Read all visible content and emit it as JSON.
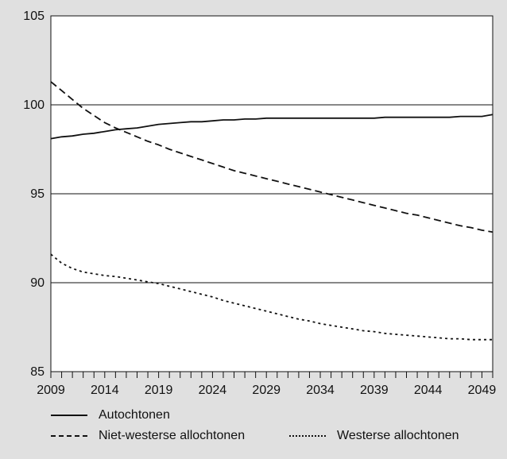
{
  "chart_data": {
    "type": "line",
    "title": "",
    "xlabel": "",
    "ylabel": "",
    "xlim": [
      2009,
      2050
    ],
    "ylim": [
      85,
      105
    ],
    "yticks": [
      85,
      90,
      95,
      100,
      105
    ],
    "xtick_labels": [
      2009,
      2014,
      2019,
      2024,
      2029,
      2034,
      2039,
      2044,
      2049
    ],
    "grid": "horizontal",
    "legend_position": "bottom",
    "series": [
      {
        "name": "Autochtonen",
        "style": "solid",
        "x": [
          2009,
          2010,
          2011,
          2012,
          2013,
          2014,
          2015,
          2016,
          2017,
          2018,
          2019,
          2020,
          2021,
          2022,
          2023,
          2024,
          2025,
          2026,
          2027,
          2028,
          2029,
          2030,
          2031,
          2032,
          2033,
          2034,
          2035,
          2036,
          2037,
          2038,
          2039,
          2040,
          2041,
          2042,
          2043,
          2044,
          2045,
          2046,
          2047,
          2048,
          2049,
          2050
        ],
        "values": [
          98.1,
          98.2,
          98.25,
          98.35,
          98.4,
          98.5,
          98.6,
          98.65,
          98.7,
          98.8,
          98.9,
          98.95,
          99.0,
          99.05,
          99.05,
          99.1,
          99.15,
          99.15,
          99.2,
          99.2,
          99.25,
          99.25,
          99.25,
          99.25,
          99.25,
          99.25,
          99.25,
          99.25,
          99.25,
          99.25,
          99.25,
          99.3,
          99.3,
          99.3,
          99.3,
          99.3,
          99.3,
          99.3,
          99.35,
          99.35,
          99.35,
          99.45
        ]
      },
      {
        "name": "Niet-westerse allochtonen",
        "style": "dashed",
        "x": [
          2009,
          2010,
          2011,
          2012,
          2013,
          2014,
          2015,
          2016,
          2017,
          2018,
          2019,
          2020,
          2021,
          2022,
          2023,
          2024,
          2025,
          2026,
          2027,
          2028,
          2029,
          2030,
          2031,
          2032,
          2033,
          2034,
          2035,
          2036,
          2037,
          2038,
          2039,
          2040,
          2041,
          2042,
          2043,
          2044,
          2045,
          2046,
          2047,
          2048,
          2049,
          2050
        ],
        "values": [
          101.3,
          100.8,
          100.3,
          99.8,
          99.4,
          99.0,
          98.7,
          98.45,
          98.2,
          97.95,
          97.75,
          97.5,
          97.3,
          97.1,
          96.9,
          96.7,
          96.5,
          96.3,
          96.15,
          96.0,
          95.85,
          95.7,
          95.55,
          95.4,
          95.25,
          95.1,
          94.95,
          94.8,
          94.65,
          94.5,
          94.35,
          94.2,
          94.05,
          93.9,
          93.8,
          93.65,
          93.5,
          93.35,
          93.2,
          93.1,
          92.95,
          92.85
        ]
      },
      {
        "name": "Westerse allochtonen",
        "style": "dotted",
        "x": [
          2009,
          2010,
          2011,
          2012,
          2013,
          2014,
          2015,
          2016,
          2017,
          2018,
          2019,
          2020,
          2021,
          2022,
          2023,
          2024,
          2025,
          2026,
          2027,
          2028,
          2029,
          2030,
          2031,
          2032,
          2033,
          2034,
          2035,
          2036,
          2037,
          2038,
          2039,
          2040,
          2041,
          2042,
          2043,
          2044,
          2045,
          2046,
          2047,
          2048,
          2049,
          2050
        ],
        "values": [
          91.6,
          91.1,
          90.8,
          90.6,
          90.5,
          90.4,
          90.35,
          90.25,
          90.15,
          90.05,
          89.95,
          89.8,
          89.65,
          89.5,
          89.35,
          89.2,
          89.0,
          88.85,
          88.7,
          88.55,
          88.4,
          88.25,
          88.1,
          87.95,
          87.85,
          87.7,
          87.6,
          87.5,
          87.4,
          87.3,
          87.25,
          87.15,
          87.1,
          87.05,
          87.0,
          86.95,
          86.9,
          86.85,
          86.85,
          86.8,
          86.8,
          86.8
        ]
      }
    ]
  }
}
